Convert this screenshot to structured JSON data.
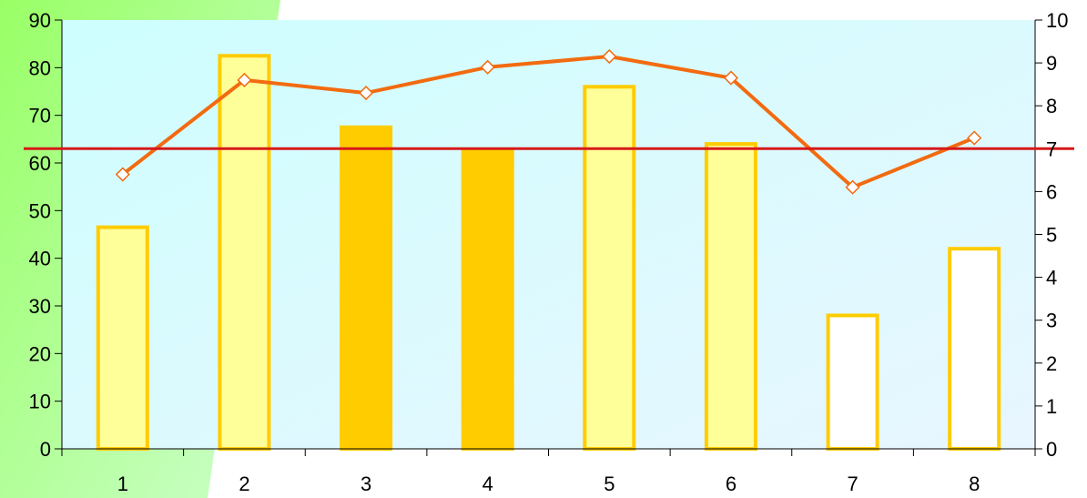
{
  "chart_data": {
    "type": "bar",
    "title": "",
    "xlabel": "",
    "ylabel": "",
    "categories": [
      "1",
      "2",
      "3",
      "4",
      "5",
      "6",
      "7",
      "8"
    ],
    "bars": {
      "values": [
        46.5,
        82.5,
        67.5,
        62.8,
        76.0,
        64.0,
        28.0,
        42.0
      ],
      "styles": [
        "light",
        "light",
        "filled",
        "filled",
        "light",
        "light",
        "outline",
        "outline"
      ]
    },
    "line": {
      "axis": "right",
      "values": [
        6.4,
        8.6,
        8.3,
        8.9,
        9.15,
        8.65,
        6.1,
        7.25
      ]
    },
    "reference_line": {
      "axis": "right",
      "value": 7.0
    },
    "y_left": {
      "lim": [
        0,
        90
      ],
      "ticks": [
        "0",
        "10",
        "20",
        "30",
        "40",
        "50",
        "60",
        "70",
        "80",
        "90"
      ]
    },
    "y_right": {
      "lim": [
        0,
        10
      ],
      "ticks": [
        "0",
        "1",
        "2",
        "3",
        "4",
        "5",
        "6",
        "7",
        "8",
        "9",
        "10"
      ]
    },
    "grid": false,
    "legend": "none"
  },
  "colors": {
    "bar_light_fill": "#ffff99",
    "bar_filled_fill": "#ffcc00",
    "bar_outline_fill": "#ffffff",
    "bar_stroke": "#ffcc00",
    "line": "#f26b10",
    "marker_fill": "#ffffff",
    "reference_line": "#d61a1a",
    "plot_bg_start": "#cefefe",
    "plot_bg_end": "#e8f6ff",
    "page_accent": "#99ff66"
  }
}
